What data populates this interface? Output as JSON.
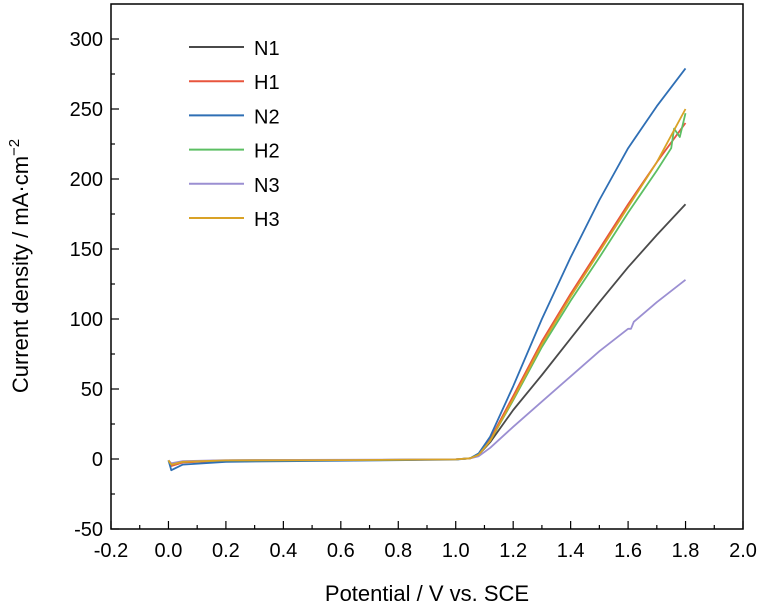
{
  "chart_data": {
    "type": "line",
    "title": "",
    "xlabel": "Potential / V vs. SCE",
    "ylabel": "Current density / mA·cm",
    "ylabel_sup": "−2",
    "xlim": [
      -0.2,
      2.0
    ],
    "ylim": [
      -50,
      325
    ],
    "xticks": [
      -0.2,
      0.0,
      0.2,
      0.4,
      0.6,
      0.8,
      1.0,
      1.2,
      1.4,
      1.6,
      1.8,
      2.0
    ],
    "xtick_labels": [
      "-0.2",
      "0.0",
      "0.2",
      "0.4",
      "0.6",
      "0.8",
      "1.0",
      "1.2",
      "1.4",
      "1.6",
      "1.8",
      "2.0"
    ],
    "yticks": [
      -50,
      0,
      50,
      100,
      150,
      200,
      250,
      300
    ],
    "ytick_labels": [
      "-50",
      "0",
      "50",
      "100",
      "150",
      "200",
      "250",
      "300"
    ],
    "grid": false,
    "legend_position": "top-left",
    "series": [
      {
        "name": "N1",
        "color": "#4a4a4a",
        "x": [
          0.0,
          0.01,
          0.05,
          0.2,
          0.6,
          1.0,
          1.05,
          1.08,
          1.12,
          1.2,
          1.3,
          1.4,
          1.5,
          1.6,
          1.7,
          1.8
        ],
        "y": [
          -1,
          -4,
          -2,
          -1,
          -0.8,
          -0.3,
          0.5,
          3,
          12,
          35,
          60,
          86,
          112,
          137,
          160,
          182
        ]
      },
      {
        "name": "H1",
        "color": "#e8553d",
        "x": [
          0.0,
          0.01,
          0.05,
          0.2,
          0.6,
          1.0,
          1.05,
          1.08,
          1.12,
          1.2,
          1.3,
          1.4,
          1.5,
          1.6,
          1.7,
          1.8
        ],
        "y": [
          -1,
          -5,
          -2.5,
          -1.2,
          -0.9,
          -0.3,
          0.5,
          3,
          14,
          45,
          84,
          118,
          150,
          182,
          212,
          240
        ]
      },
      {
        "name": "N2",
        "color": "#2f6fb5",
        "x": [
          0.0,
          0.01,
          0.05,
          0.2,
          0.6,
          1.0,
          1.05,
          1.08,
          1.12,
          1.2,
          1.3,
          1.4,
          1.5,
          1.6,
          1.7,
          1.8
        ],
        "y": [
          -1,
          -8,
          -4,
          -2,
          -1.2,
          -0.4,
          0.5,
          4,
          16,
          52,
          100,
          144,
          185,
          222,
          252,
          279
        ]
      },
      {
        "name": "H2",
        "color": "#5cbf63",
        "x": [
          0.0,
          0.01,
          0.05,
          0.2,
          0.6,
          1.0,
          1.05,
          1.08,
          1.12,
          1.2,
          1.3,
          1.4,
          1.5,
          1.6,
          1.7,
          1.75,
          1.76,
          1.78,
          1.8
        ],
        "y": [
          -1,
          -4,
          -2,
          -1,
          -0.8,
          -0.3,
          0.5,
          3,
          13,
          42,
          80,
          113,
          144,
          176,
          206,
          222,
          236,
          230,
          247
        ]
      },
      {
        "name": "N3",
        "color": "#9b8fd2",
        "x": [
          0.0,
          0.01,
          0.05,
          0.2,
          0.6,
          1.0,
          1.05,
          1.08,
          1.12,
          1.2,
          1.3,
          1.4,
          1.5,
          1.6,
          1.61,
          1.62,
          1.7,
          1.8
        ],
        "y": [
          -1,
          -3,
          -1.5,
          -0.8,
          -0.6,
          -0.2,
          0.4,
          2,
          8,
          23,
          41,
          59,
          77,
          93,
          93,
          98,
          112,
          128
        ]
      },
      {
        "name": "H3",
        "color": "#d9a226",
        "x": [
          0.0,
          0.01,
          0.05,
          0.2,
          0.6,
          1.0,
          1.05,
          1.08,
          1.12,
          1.2,
          1.3,
          1.4,
          1.5,
          1.6,
          1.7,
          1.8
        ],
        "y": [
          -1,
          -4,
          -2,
          -1,
          -0.8,
          -0.3,
          0.5,
          3,
          13,
          43,
          82,
          116,
          148,
          180,
          212,
          250
        ]
      }
    ]
  }
}
